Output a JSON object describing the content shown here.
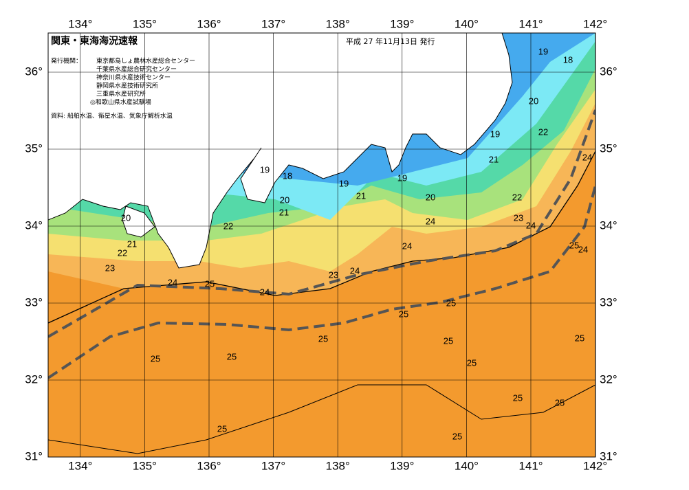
{
  "header": {
    "title": "関東・東海海況速報",
    "date": "平成 27 年11月13日 発行",
    "issuer_label": "発行機関：",
    "issuers": [
      "東京都島しょ農林水産総合センター",
      "千葉県水産総合研究センター",
      "神奈川県水産技術センター",
      "静岡県水産技術研究所",
      "三重県水産研究所",
      "◎和歌山県水産試験場"
    ],
    "source": "資料: 船舶水温、衛星水温、気象庁解析水温"
  },
  "map": {
    "lon_ticks": [
      {
        "value": 134,
        "label": "134°"
      },
      {
        "value": 135,
        "label": "135°"
      },
      {
        "value": 136,
        "label": "136°"
      },
      {
        "value": 137,
        "label": "137°"
      },
      {
        "value": 138,
        "label": "138°"
      },
      {
        "value": 139,
        "label": "139°"
      },
      {
        "value": 140,
        "label": "140°"
      },
      {
        "value": 141,
        "label": "141°"
      },
      {
        "value": 142,
        "label": "142°"
      }
    ],
    "lat_ticks": [
      {
        "value": 31,
        "label": "31°"
      },
      {
        "value": 32,
        "label": "32°"
      },
      {
        "value": 33,
        "label": "33°"
      },
      {
        "value": 34,
        "label": "34°"
      },
      {
        "value": 35,
        "label": "35°"
      },
      {
        "value": 36,
        "label": "36°"
      }
    ],
    "contour_labels": [
      19,
      18,
      20,
      19,
      22,
      21,
      24,
      19,
      18,
      19,
      19,
      21,
      20,
      21,
      20,
      22,
      23,
      24,
      24,
      20,
      22,
      21,
      22,
      24,
      25,
      24,
      23,
      24,
      23,
      24,
      25,
      24,
      25,
      25,
      25,
      25,
      25,
      25,
      25,
      25,
      25,
      25,
      25,
      25
    ]
  }
}
